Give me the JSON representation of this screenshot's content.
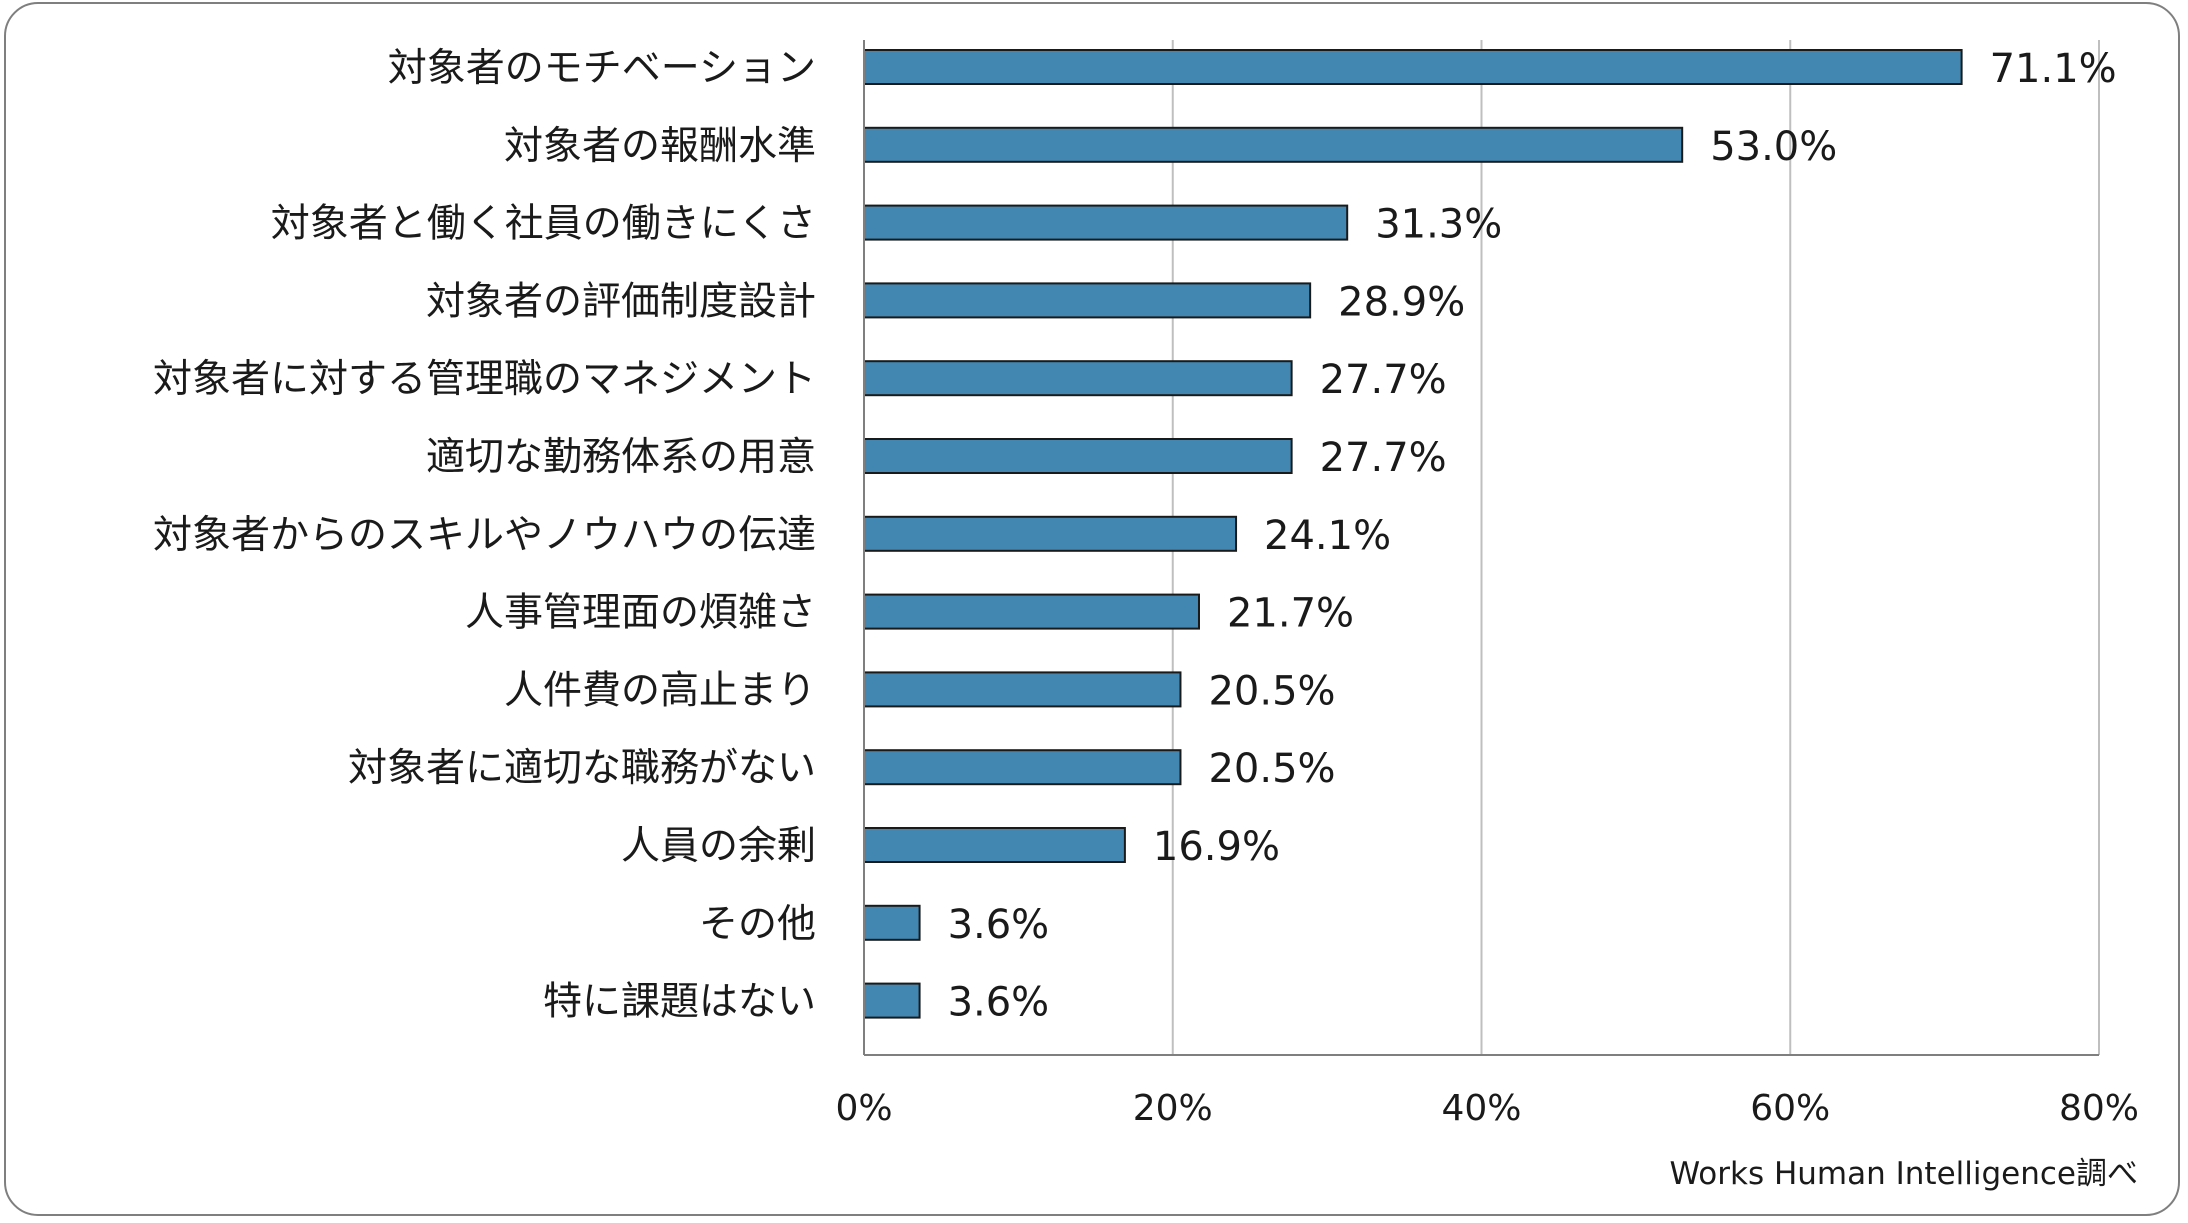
{
  "chart_data": {
    "type": "bar",
    "orientation": "horizontal",
    "categories": [
      "対象者のモチベーション",
      "対象者の報酬水準",
      "対象者と働く社員の働きにくさ",
      "対象者の評価制度設計",
      "対象者に対する管理職のマネジメント",
      "適切な勤務体系の用意",
      "対象者からのスキルやノウハウの伝達",
      "人事管理面の煩雑さ",
      "人件費の高止まり",
      "対象者に適切な職務がない",
      "人員の余剰",
      "その他",
      "特に課題はない"
    ],
    "values": [
      71.1,
      53.0,
      31.3,
      28.9,
      27.7,
      27.7,
      24.1,
      21.7,
      20.5,
      20.5,
      16.9,
      3.6,
      3.6
    ],
    "value_labels": [
      "71.1%",
      "53.0%",
      "31.3%",
      "28.9%",
      "27.7%",
      "27.7%",
      "24.1%",
      "21.7%",
      "20.5%",
      "20.5%",
      "16.9%",
      "3.6%",
      "3.6%"
    ],
    "xlim": [
      0,
      80
    ],
    "xticks": [
      0,
      20,
      40,
      60,
      80
    ],
    "xtick_labels": [
      "0%",
      "20%",
      "40%",
      "60%",
      "80%"
    ],
    "grid": "vertical",
    "bar_color": "#4187b2",
    "bar_edge_color": "#1a1a1a",
    "grid_color": "#bfbfbf"
  },
  "source_note": "Works Human Intelligence調べ"
}
